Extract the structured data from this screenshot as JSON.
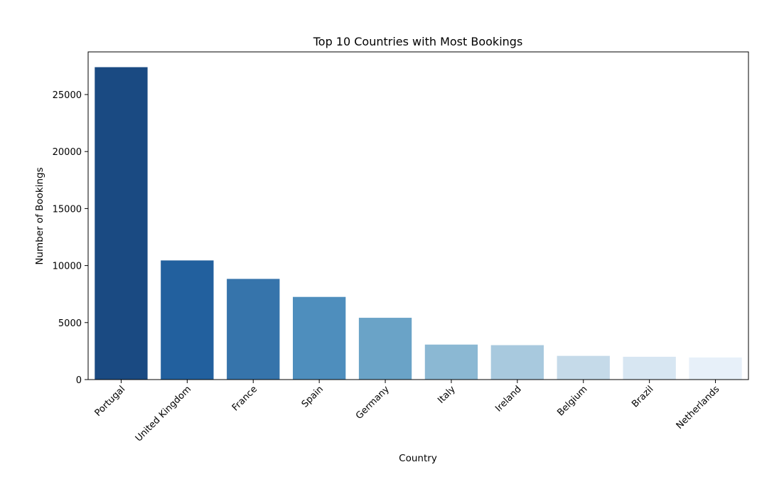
{
  "chart_data": {
    "type": "bar",
    "title": "Top 10 Countries with Most Bookings",
    "xlabel": "Country",
    "ylabel": "Number of Bookings",
    "categories": [
      "Portugal",
      "United Kingdom",
      "France",
      "Spain",
      "Germany",
      "Italy",
      "Ireland",
      "Belgium",
      "Brazil",
      "Netherlands"
    ],
    "values": [
      27400,
      10450,
      8830,
      7250,
      5420,
      3070,
      3020,
      2080,
      2000,
      1940
    ],
    "colors": [
      "#1a4a82",
      "#22609e",
      "#3674ab",
      "#4e8ebd",
      "#6aa3c7",
      "#8bb8d3",
      "#a8c9de",
      "#c5dae9",
      "#d7e6f2",
      "#e7f0f9"
    ],
    "ylim": [
      0,
      28740
    ],
    "yticks": [
      0,
      5000,
      10000,
      15000,
      20000,
      25000
    ],
    "ytick_labels": [
      "0",
      "5000",
      "10000",
      "15000",
      "20000",
      "25000"
    ],
    "grid": false,
    "legend": false
  }
}
